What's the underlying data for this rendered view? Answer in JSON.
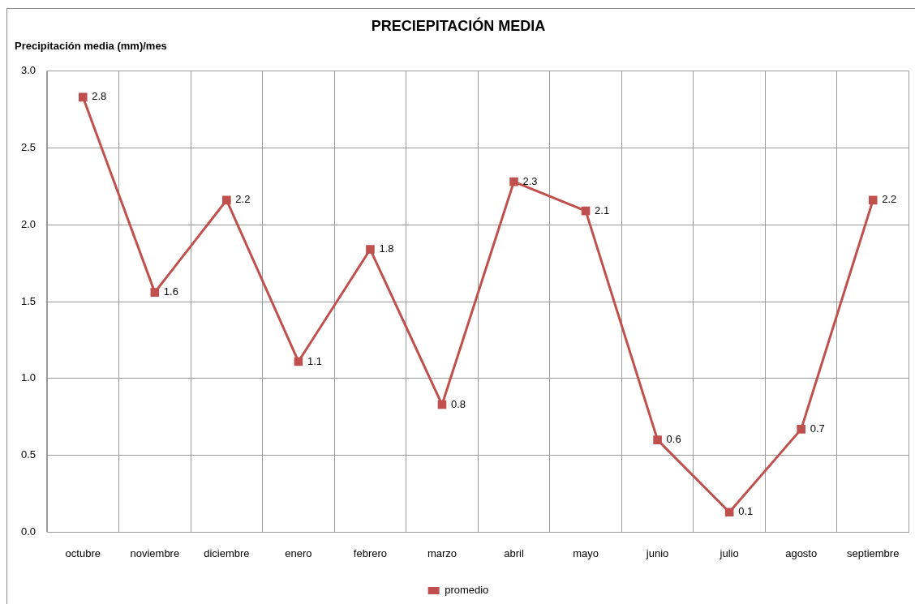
{
  "chart_data": {
    "type": "line",
    "title": "PRECIEPITACIÓN MEDIA",
    "ylabel": "Precipitación media (mm)/mes",
    "categories": [
      "octubre",
      "noviembre",
      "diciembre",
      "enero",
      "febrero",
      "marzo",
      "abril",
      "mayo",
      "junio",
      "julio",
      "agosto",
      "septiembre"
    ],
    "series": [
      {
        "name": "promedio",
        "color": "#c0504d",
        "values": [
          2.83,
          1.56,
          2.16,
          1.11,
          1.84,
          0.83,
          2.28,
          2.09,
          0.6,
          0.13,
          0.67,
          2.16
        ],
        "value_labels": [
          "2.8",
          "1.6",
          "2.2",
          "1.1",
          "1.8",
          "0.8",
          "2.3",
          "2.1",
          "0.6",
          "0.1",
          "0.7",
          "2.2"
        ]
      }
    ],
    "ylim": [
      0,
      3
    ],
    "yticks": [
      {
        "value": 0,
        "label": "0.0"
      },
      0.5,
      {
        "value": 1,
        "label": "1.0"
      },
      1.5,
      {
        "value": 2,
        "label": "2.0"
      },
      2.5,
      {
        "value": 3,
        "label": "3.0"
      }
    ],
    "grid": true,
    "legend": "bottom",
    "marker": "square",
    "line_style": "solid"
  }
}
